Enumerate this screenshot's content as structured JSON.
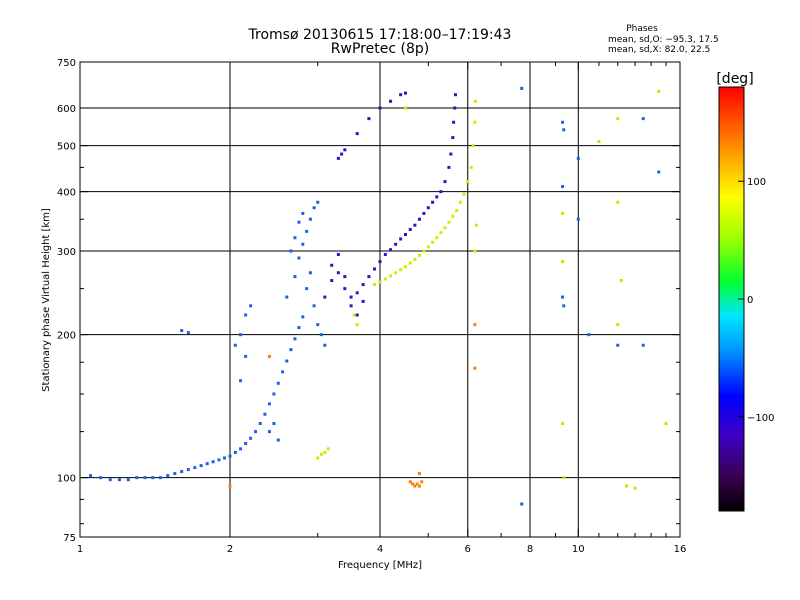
{
  "header": {
    "title_line1": "Tromsø 20130615 17:18:00–17:19:43",
    "title_line2": "RwPretec (8p)",
    "phases_title": "Phases",
    "phases_line1": "mean, sd,O: −95.3, 17.5",
    "phases_line2": "mean, sd,X:  82.0, 22.5"
  },
  "colorbar": {
    "label": "[deg]",
    "ticks": [
      "100",
      "0",
      "−100"
    ],
    "tick_values": [
      100,
      0,
      -100
    ],
    "range": [
      -180,
      180
    ]
  },
  "chart_data": {
    "type": "scatter",
    "xlabel": "Frequency [MHz]",
    "ylabel": "Stationary phase Virtual Height [km]",
    "x_scale": "log",
    "y_scale": "log",
    "xlim": [
      1,
      16
    ],
    "ylim": [
      75,
      750
    ],
    "x_ticks": [
      "1",
      "2",
      "4",
      "6",
      "8",
      "10",
      "16"
    ],
    "x_tick_values": [
      1,
      2,
      4,
      6,
      8,
      10,
      16
    ],
    "y_ticks": [
      "75",
      "100",
      "200",
      "300",
      "400",
      "500",
      "600",
      "750"
    ],
    "y_tick_values": [
      75,
      100,
      200,
      300,
      400,
      500,
      600,
      750
    ],
    "x_grid": [
      2,
      4,
      6,
      8,
      10
    ],
    "y_grid": [
      100,
      200,
      300,
      400,
      500,
      600
    ],
    "series": [
      {
        "points": [
          [
            1.05,
            101
          ],
          [
            1.1,
            100
          ],
          [
            1.15,
            99
          ],
          [
            1.2,
            99
          ],
          [
            1.25,
            99
          ],
          [
            1.3,
            100
          ],
          [
            1.35,
            100
          ],
          [
            1.4,
            100
          ],
          [
            1.45,
            100
          ],
          [
            1.5,
            101
          ],
          [
            1.55,
            102
          ],
          [
            1.6,
            103
          ],
          [
            1.65,
            104
          ],
          [
            1.7,
            105
          ],
          [
            1.75,
            106
          ],
          [
            1.8,
            107
          ],
          [
            1.85,
            108
          ],
          [
            1.9,
            109
          ],
          [
            1.95,
            110
          ],
          [
            2.0,
            111
          ],
          [
            2.05,
            113
          ],
          [
            2.1,
            115
          ],
          [
            2.15,
            118
          ],
          [
            2.2,
            121
          ],
          [
            2.25,
            125
          ],
          [
            2.3,
            130
          ],
          [
            2.35,
            136
          ],
          [
            2.4,
            143
          ],
          [
            2.45,
            150
          ],
          [
            2.5,
            158
          ],
          [
            2.55,
            167
          ],
          [
            2.6,
            176
          ],
          [
            2.65,
            186
          ],
          [
            2.7,
            196
          ],
          [
            2.75,
            207
          ],
          [
            2.8,
            218
          ],
          [
            2.1,
            160
          ],
          [
            2.15,
            180
          ],
          [
            2.1,
            200
          ],
          [
            2.15,
            220
          ],
          [
            2.2,
            230
          ],
          [
            2.05,
            190
          ],
          [
            2.6,
            240
          ],
          [
            2.7,
            265
          ],
          [
            2.75,
            290
          ],
          [
            2.8,
            310
          ],
          [
            2.85,
            330
          ],
          [
            2.9,
            350
          ],
          [
            2.95,
            370
          ],
          [
            3.0,
            380
          ],
          [
            2.65,
            300
          ],
          [
            2.7,
            320
          ],
          [
            2.75,
            345
          ],
          [
            2.8,
            360
          ],
          [
            2.85,
            250
          ],
          [
            2.9,
            270
          ],
          [
            2.95,
            230
          ],
          [
            3.0,
            210
          ],
          [
            3.05,
            200
          ],
          [
            3.1,
            190
          ],
          [
            1.6,
            204
          ],
          [
            1.65,
            202
          ],
          [
            2.4,
            125
          ],
          [
            2.45,
            130
          ],
          [
            2.5,
            120
          ]
        ],
        "color": "#1e5fe6"
      },
      {
        "points": [
          [
            3.1,
            240
          ],
          [
            3.2,
            260
          ],
          [
            3.3,
            270
          ],
          [
            3.4,
            250
          ],
          [
            3.5,
            240
          ],
          [
            3.6,
            245
          ],
          [
            3.7,
            255
          ],
          [
            3.8,
            265
          ],
          [
            3.9,
            275
          ],
          [
            4.0,
            285
          ],
          [
            4.1,
            295
          ],
          [
            4.2,
            302
          ],
          [
            4.3,
            310
          ],
          [
            4.4,
            318
          ],
          [
            4.5,
            325
          ],
          [
            4.6,
            333
          ],
          [
            4.7,
            340
          ],
          [
            4.8,
            350
          ],
          [
            4.9,
            360
          ],
          [
            5.0,
            370
          ],
          [
            5.1,
            380
          ],
          [
            5.2,
            390
          ],
          [
            5.3,
            400
          ],
          [
            5.4,
            420
          ],
          [
            5.5,
            450
          ],
          [
            5.55,
            480
          ],
          [
            5.6,
            520
          ],
          [
            5.62,
            560
          ],
          [
            5.65,
            600
          ],
          [
            5.67,
            640
          ],
          [
            3.3,
            470
          ],
          [
            3.35,
            480
          ],
          [
            3.4,
            490
          ],
          [
            3.6,
            530
          ],
          [
            3.8,
            570
          ],
          [
            4.0,
            600
          ],
          [
            4.2,
            620
          ],
          [
            4.4,
            640
          ],
          [
            4.5,
            645
          ],
          [
            3.2,
            280
          ],
          [
            3.3,
            295
          ],
          [
            3.4,
            265
          ],
          [
            3.5,
            230
          ],
          [
            3.6,
            220
          ],
          [
            3.7,
            235
          ]
        ],
        "color": "#2a14c8"
      },
      {
        "points": [
          [
            3.9,
            255
          ],
          [
            4.0,
            258
          ],
          [
            4.1,
            262
          ],
          [
            4.2,
            266
          ],
          [
            4.3,
            270
          ],
          [
            4.4,
            274
          ],
          [
            4.5,
            278
          ],
          [
            4.6,
            283
          ],
          [
            4.7,
            288
          ],
          [
            4.8,
            294
          ],
          [
            4.9,
            300
          ],
          [
            5.0,
            306
          ],
          [
            5.1,
            313
          ],
          [
            5.2,
            320
          ],
          [
            5.3,
            328
          ],
          [
            5.4,
            336
          ],
          [
            5.5,
            345
          ],
          [
            5.6,
            355
          ],
          [
            5.7,
            365
          ],
          [
            5.8,
            380
          ],
          [
            5.9,
            395
          ],
          [
            6.0,
            420
          ],
          [
            6.1,
            450
          ],
          [
            6.15,
            500
          ],
          [
            6.2,
            560
          ],
          [
            6.22,
            620
          ],
          [
            3.0,
            110
          ],
          [
            3.05,
            112
          ],
          [
            3.1,
            113
          ],
          [
            3.15,
            115
          ],
          [
            3.6,
            210
          ],
          [
            3.55,
            220
          ],
          [
            6.2,
            300
          ],
          [
            6.25,
            340
          ],
          [
            4.5,
            600
          ]
        ],
        "color": "#c8f000"
      },
      {
        "points": [
          [
            4.6,
            98
          ],
          [
            4.65,
            97
          ],
          [
            4.7,
            96
          ],
          [
            4.75,
            97
          ],
          [
            4.8,
            96
          ],
          [
            4.85,
            98
          ],
          [
            2.4,
            180
          ],
          [
            2.0,
            96
          ],
          [
            6.2,
            170
          ],
          [
            6.2,
            210
          ],
          [
            4.8,
            102
          ]
        ],
        "color": "#ff8000"
      },
      {
        "points": [
          [
            9.3,
            560
          ],
          [
            9.35,
            540
          ],
          [
            10.0,
            470
          ],
          [
            9.3,
            410
          ],
          [
            10.0,
            350
          ],
          [
            9.3,
            240
          ],
          [
            9.35,
            230
          ],
          [
            12.0,
            190
          ],
          [
            13.5,
            570
          ],
          [
            13.5,
            190
          ],
          [
            14.5,
            440
          ],
          [
            10.5,
            200
          ],
          [
            7.7,
            88
          ],
          [
            7.7,
            660
          ]
        ],
        "color": "#1e5fe6"
      },
      {
        "points": [
          [
            9.3,
            360
          ],
          [
            12.0,
            380
          ],
          [
            12.2,
            260
          ],
          [
            13.0,
            95
          ],
          [
            12.5,
            96
          ],
          [
            12.0,
            570
          ],
          [
            11.0,
            510
          ],
          [
            9.3,
            285
          ],
          [
            12.0,
            210
          ],
          [
            15.0,
            130
          ],
          [
            14.5,
            650
          ],
          [
            9.3,
            130
          ],
          [
            9.35,
            100
          ]
        ],
        "color": "#b4f000"
      }
    ]
  }
}
